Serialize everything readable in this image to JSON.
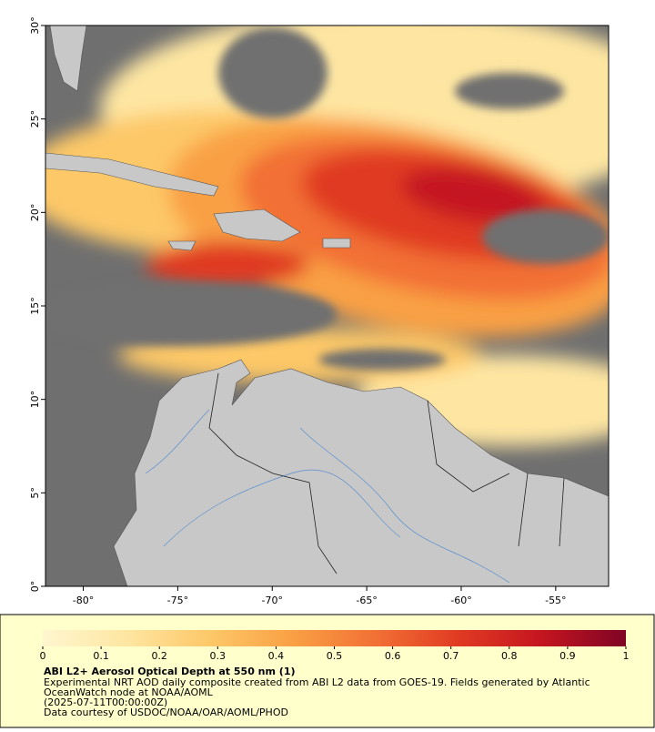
{
  "chart_data": {
    "type": "map",
    "title": "ABI L2+ Aerosol Optical Depth at 550 nm (1)",
    "description": [
      "Experimental NRT AOD daily composite created from ABI L2 data from GOES-19. Fields generated by Atlantic",
      "OceanWatch node at NOAA/AOML",
      "(2025-07-11T00:00:00Z)",
      "Data courtesy of USDOC/NOAA/OAR/AOML/PHOD"
    ],
    "xlim": [
      -82,
      -52.2
    ],
    "ylim": [
      0,
      30
    ],
    "xticks": [
      {
        "value": -80,
        "label": "-80°"
      },
      {
        "value": -75,
        "label": "-75°"
      },
      {
        "value": -70,
        "label": "-70°"
      },
      {
        "value": -65,
        "label": "-65°"
      },
      {
        "value": -60,
        "label": "-60°"
      },
      {
        "value": -55,
        "label": "-55°"
      }
    ],
    "yticks": [
      {
        "value": 0,
        "label": "0°"
      },
      {
        "value": 5,
        "label": "5°"
      },
      {
        "value": 10,
        "label": "10°"
      },
      {
        "value": 15,
        "label": "15°"
      },
      {
        "value": 20,
        "label": "20°"
      },
      {
        "value": 25,
        "label": "25°"
      },
      {
        "value": 30,
        "label": "30°"
      }
    ],
    "colorbar": {
      "lim": [
        0,
        1
      ],
      "ticks": [
        0,
        0.1,
        0.2,
        0.3,
        0.4,
        0.5,
        0.6,
        0.7,
        0.8,
        0.9,
        1
      ],
      "colors": [
        "#fff6cf",
        "#fee6a2",
        "#fdc868",
        "#f9a044",
        "#f27035",
        "#e03a22",
        "#c41520",
        "#7f0425"
      ]
    }
  }
}
